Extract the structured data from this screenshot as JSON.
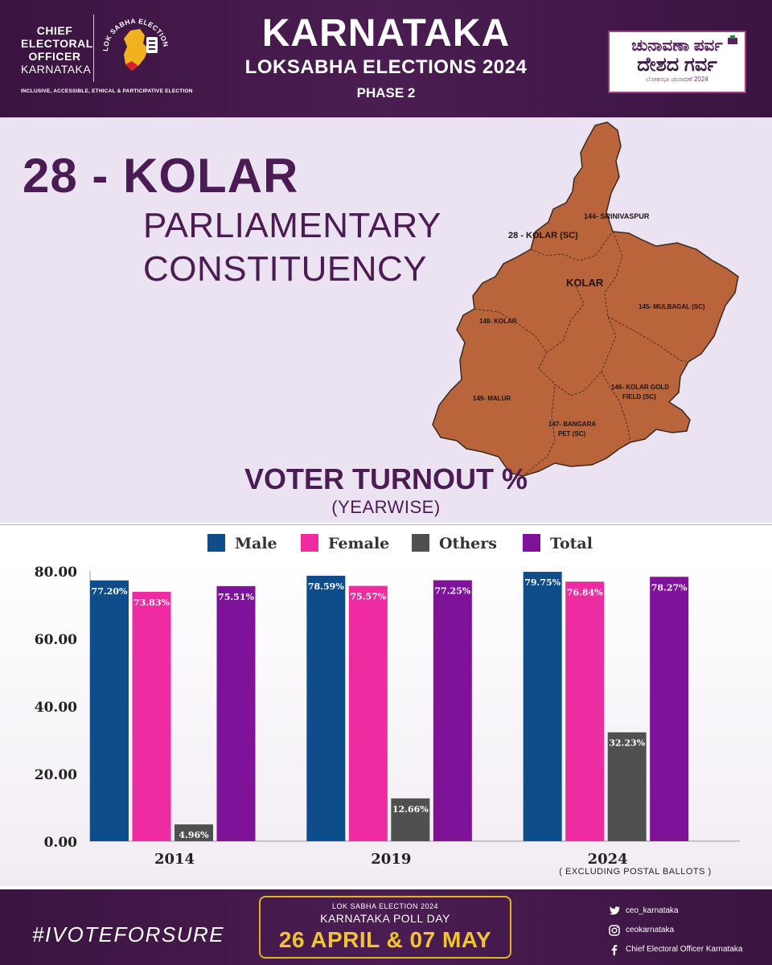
{
  "header": {
    "org_lines": [
      "CHIEF",
      "ELECTORAL",
      "OFFICER",
      "KARNATAKA"
    ],
    "emblem_text": "LOK SABHA ELECTION 2024",
    "tagline": "INCLUSIVE, ACCESSIBLE, ETHICAL & PARTICIPATIVE ELECTION",
    "title": "KARNATAKA",
    "subtitle": "LOKSABHA ELECTIONS 2024",
    "phase": "PHASE 2",
    "badge_line1": "ಚುನಾವಣಾ ಪರ್ವ",
    "badge_line2": "ದೇಶದ ಗರ್ವ",
    "badge_line3": "ಲೋಕಸಭಾ ಚುನಾವಣೆ 2024"
  },
  "constituency": {
    "number_name": "28 - KOLAR",
    "line1": "PARLIAMENTARY",
    "line2": "CONSTITUENCY"
  },
  "map": {
    "title": "28 - KOLAR (SC)",
    "center_label": "KOLAR",
    "fill_color": "#b9643b",
    "segments": [
      {
        "label": "144- SRINIVASPUR"
      },
      {
        "label": "145- MULBAGAL (SC)"
      },
      {
        "label": "148- KOLAR"
      },
      {
        "label": "146- KOLAR GOLD",
        "label2": "FIELD (SC)"
      },
      {
        "label": "149- MALUR"
      },
      {
        "label": "147- BANGARA",
        "label2": "PET (SC)"
      }
    ]
  },
  "chart_data": {
    "type": "bar",
    "title": "VOTER TURNOUT %",
    "subtitle": "(YEARWISE)",
    "categories": [
      "2014",
      "2019",
      "2024"
    ],
    "series": [
      {
        "name": "Male",
        "color": "#0f4c8a",
        "values": [
          77.2,
          78.59,
          79.75
        ]
      },
      {
        "name": "Female",
        "color": "#ee2ba0",
        "values": [
          73.83,
          75.57,
          76.84
        ]
      },
      {
        "name": "Others",
        "color": "#505050",
        "values": [
          4.96,
          12.66,
          32.23
        ]
      },
      {
        "name": "Total",
        "color": "#7e139a",
        "values": [
          75.51,
          77.25,
          78.27
        ]
      }
    ],
    "y_ticks": [
      "0.00",
      "20.00",
      "40.00",
      "60.00",
      "80.00"
    ],
    "ylim": [
      0,
      80
    ],
    "grid": false,
    "legend_position": "top",
    "footnote": "( EXCLUDING POSTAL BALLOTS )"
  },
  "footer": {
    "hashtag": "#IVOTEFORSURE",
    "poll_line1": "LOK SABHA ELECTION 2024",
    "poll_line2": "KARNATAKA POLL DAY",
    "poll_dates": "26 APRIL & 07 MAY",
    "social": [
      {
        "icon": "twitter-icon",
        "text": "ceo_karnataka"
      },
      {
        "icon": "instagram-icon",
        "text": "ceokarnataka"
      },
      {
        "icon": "facebook-icon",
        "text": "Chief Electoral Officer Karnataka"
      }
    ]
  }
}
